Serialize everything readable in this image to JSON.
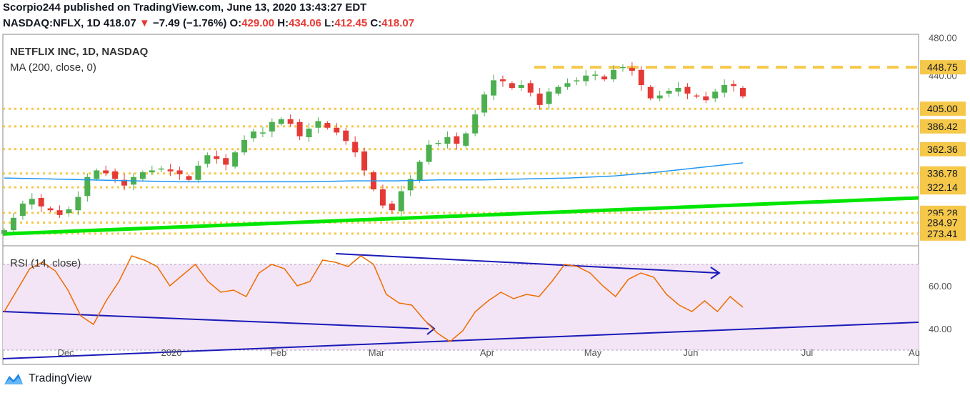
{
  "header": {
    "publisher_line": "Scorpio244 published on TradingView.com, June 13, 2020 13:43:27 EDT",
    "symbol": "NASDAQ:NFLX, 1D",
    "last": "418.07",
    "change_arrow": "▼",
    "change": "−7.49 (−1.76%)",
    "o_label": "O:",
    "o_value": "429.00",
    "h_label": "H:",
    "h_value": "434.06",
    "l_label": "L:",
    "l_value": "412.45",
    "c_label": "C:",
    "c_value": "418.07"
  },
  "pane_labels": {
    "title": "NETFLIX INC, 1D, NASDAQ",
    "ma": "MA (200, close, 0)",
    "rsi": "RSI (14, close)"
  },
  "brand": {
    "name": "TradingView"
  },
  "colors": {
    "up_candle": "#4caf50",
    "down_candle": "#e53935",
    "ma_line": "#2196f3",
    "rsi_line": "#ef6c00",
    "rsi_band": "#f3e5f5",
    "level_line": "#f6c84a",
    "support_trend": "#00e600",
    "rsi_trend": "#1a1ab8"
  },
  "chart_data": [
    {
      "type": "candlestick",
      "title": "NETFLIX INC, 1D, NASDAQ",
      "ylim": [
        262,
        482
      ],
      "x_axis_labels": [
        "Dec",
        "2020",
        "Feb",
        "Mar",
        "Apr",
        "May",
        "Jun",
        "Jul",
        "Au"
      ],
      "y_axis_ticks": [
        "480.00",
        "440.00"
      ],
      "price_levels": [
        "448.75",
        "405.00",
        "386.42",
        "362.36",
        "336.78",
        "322.14",
        "295.28",
        "284.97",
        "273.41"
      ],
      "close_path": [
        277,
        290,
        305,
        310,
        302,
        298,
        293,
        299,
        312,
        333,
        340,
        337,
        331,
        324,
        333,
        338,
        340,
        342,
        339,
        336,
        330,
        345,
        356,
        352,
        346,
        359,
        372,
        381,
        380,
        391,
        394,
        389,
        376,
        384,
        392,
        385,
        380,
        371,
        359,
        340,
        320,
        303,
        298,
        318,
        331,
        349,
        367,
        369,
        375,
        368,
        379,
        399,
        420,
        435,
        434,
        427,
        430,
        422,
        409,
        423,
        428,
        432,
        435,
        440,
        441,
        436,
        446,
        449,
        445,
        430,
        416,
        419,
        424,
        427,
        421,
        418,
        414,
        423,
        430,
        429,
        418
      ],
      "ma_200": [
        332,
        331,
        330,
        329,
        328,
        328,
        328,
        328,
        329,
        329,
        330,
        330,
        331,
        332,
        334,
        338,
        343,
        348
      ],
      "trendline": {
        "label": "support",
        "from": 273,
        "to": 311
      }
    },
    {
      "type": "line",
      "title": "RSI (14, close)",
      "ylim": [
        24,
        78
      ],
      "y_axis_ticks": [
        "60.00",
        "40.00"
      ],
      "bands": [
        30,
        70
      ],
      "series": [
        {
          "values": [
            48,
            58,
            68,
            71,
            67,
            58,
            46,
            42,
            53,
            62,
            74,
            72,
            69,
            60,
            65,
            70,
            62,
            57,
            58,
            55,
            66,
            70,
            68,
            60,
            62,
            72,
            71,
            69,
            74,
            70,
            56,
            52,
            51,
            44,
            38,
            34,
            39,
            48,
            53,
            57,
            54,
            56,
            55,
            62,
            70,
            69,
            66,
            60,
            55,
            63,
            66,
            64,
            56,
            51,
            48,
            53,
            48,
            55,
            50
          ]
        }
      ],
      "trendlines": [
        {
          "from": 48,
          "to": 40
        },
        {
          "from": 26,
          "to": 43
        },
        {
          "from": 75,
          "to": 66
        }
      ]
    }
  ]
}
